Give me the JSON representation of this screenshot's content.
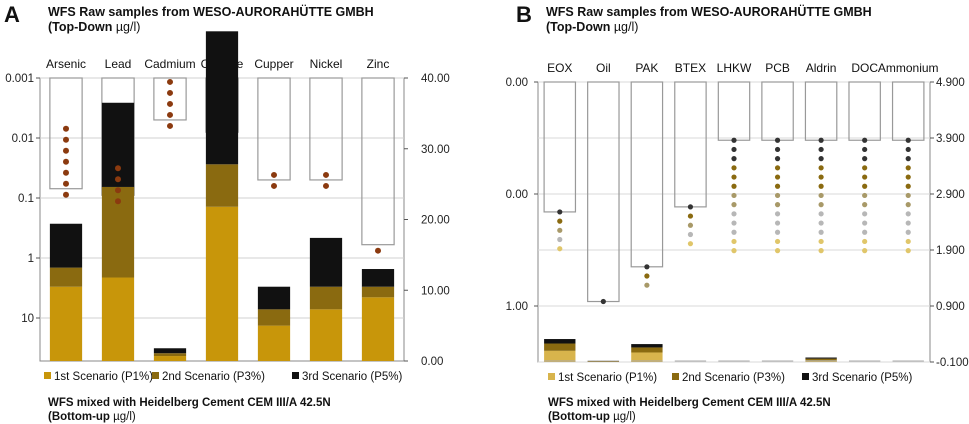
{
  "chart_data": [
    {
      "type": "bar",
      "panel": "A",
      "title": "WFS Raw samples from WESO-AURORAHÜTTE GMBH",
      "subtitle_bold": "(Top-Down",
      "subtitle_unit": "µg/l)",
      "bottom_title": "WFS mixed with Heidelberg Cement CEM III/A 42.5N",
      "bottom_subtitle_bold": "(Bottom-up",
      "bottom_subtitle_unit": "µg/l)",
      "categories": [
        "Arsenic",
        "Lead",
        "Cadmium",
        "Chrome",
        "Cupper",
        "Nickel",
        "Zinc"
      ],
      "left_axis": {
        "scale": "log-inverted",
        "ticks": [
          "0.001",
          "0.01",
          "0.1",
          "1",
          "10"
        ],
        "range": [
          0.001,
          40
        ]
      },
      "right_axis": {
        "ticks": [
          "0.00",
          "10.00",
          "20.00",
          "30.00",
          "40.00"
        ],
        "range": [
          0,
          40
        ]
      },
      "raw_samples_top_down": [
        0.07,
        0.09,
        0.005,
        0.008,
        0.05,
        0.05,
        0.6
      ],
      "series": [
        {
          "name": "1st Scenario (P1%)",
          "color": "#c8960a",
          "values": [
            10.5,
            11.8,
            0.7,
            21.8,
            5.0,
            7.3,
            9.0
          ]
        },
        {
          "name": "2nd Scenario (P3%)",
          "color": "#8a6a10",
          "values": [
            2.7,
            12.8,
            0.4,
            6.0,
            2.3,
            3.2,
            1.5
          ]
        },
        {
          "name": "3rd Scenario (P5%)",
          "color": "#111111",
          "values": [
            6.2,
            11.9,
            0.7,
            18.8,
            3.2,
            6.9,
            2.5
          ]
        }
      ],
      "dots": {
        "color": "#8b3a0f",
        "counts": [
          7,
          4,
          5,
          0,
          2,
          2,
          1
        ]
      }
    },
    {
      "type": "bar",
      "panel": "B",
      "title": "WFS Raw samples from WESO-AURORAHÜTTE GMBH",
      "subtitle_bold": "(Top-Down",
      "subtitle_unit": "µg/l)",
      "bottom_title": "WFS mixed with Heidelberg Cement CEM III/A 42.5N",
      "bottom_subtitle_bold": "(Bottom-up",
      "bottom_subtitle_unit": "µg/l)",
      "categories": [
        "EOX",
        "Oil",
        "PAK",
        "BTEX",
        "LHKW",
        "PCB",
        "Aldrin",
        "DOC",
        "Ammonium"
      ],
      "left_axis": {
        "ticks": [
          "0.00",
          "0.00",
          "1.00"
        ]
      },
      "right_axis": {
        "ticks": [
          "4.900",
          "3.900",
          "2.900",
          "1.900",
          "0.900",
          "-0.100"
        ],
        "range": [
          -0.1,
          4.9
        ]
      },
      "raw_samples_top_down": [
        2.58,
        0.98,
        1.6,
        2.67,
        3.86,
        3.86,
        3.86,
        3.86,
        3.86
      ],
      "series": [
        {
          "name": "1st Scenario (P1%)",
          "color": "#d8b44c",
          "values": [
            0.2,
            0.0,
            0.17,
            0.0,
            0.0,
            0.0,
            0.03,
            0.0,
            0.0
          ]
        },
        {
          "name": "2nd Scenario (P3%)",
          "color": "#8a6a10",
          "values": [
            0.13,
            0.01,
            0.09,
            0.0,
            0.0,
            0.0,
            0.03,
            0.0,
            0.0
          ]
        },
        {
          "name": "3rd Scenario (P5%)",
          "color": "#111111",
          "values": [
            0.08,
            0.01,
            0.06,
            0.0,
            0.0,
            0.0,
            0.02,
            0.0,
            0.0
          ]
        }
      ],
      "dots": {
        "colors": [
          "#333333",
          "#8a6a10",
          "#a89968",
          "#b7b7b7",
          "#e0c66a"
        ],
        "counts": [
          5,
          1,
          3,
          5,
          13,
          13,
          13,
          13,
          13
        ]
      }
    }
  ]
}
